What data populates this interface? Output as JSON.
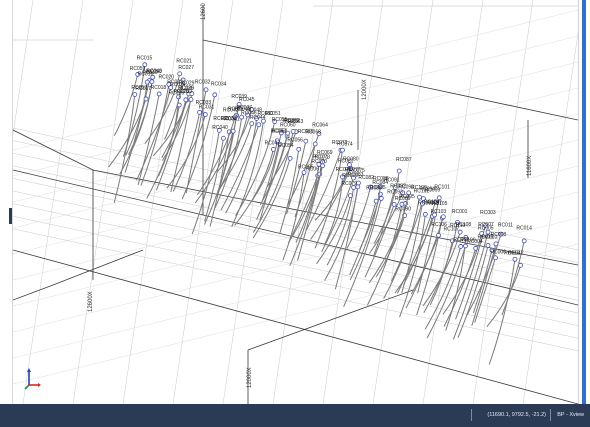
{
  "scene": {
    "axis_labels": {
      "top_north": "12600",
      "mid_north": "12000X",
      "right_elev": "11600X",
      "left_east": "12600X",
      "bottom_east": "12000X"
    },
    "hole_color": "#7a7a7a",
    "collar_color": "#3b4cc0",
    "label_color": "#1a1a1a",
    "drillholes": [
      {
        "id": "RC059"
      },
      {
        "id": "RC049"
      },
      {
        "id": "RC015"
      },
      {
        "id": "RC057"
      },
      {
        "id": "RC058"
      },
      {
        "id": "RC016"
      },
      {
        "id": "RC017"
      },
      {
        "id": "RC018"
      },
      {
        "id": "RC019"
      },
      {
        "id": "RC020"
      },
      {
        "id": "RC021"
      },
      {
        "id": "RC022"
      },
      {
        "id": "RC023"
      },
      {
        "id": "RC024"
      },
      {
        "id": "RC025"
      },
      {
        "id": "RC026"
      },
      {
        "id": "RC027"
      },
      {
        "id": "RC028"
      },
      {
        "id": "RC029"
      },
      {
        "id": "RC030"
      },
      {
        "id": "RC031"
      },
      {
        "id": "RC032"
      },
      {
        "id": "RC033"
      },
      {
        "id": "RC034"
      },
      {
        "id": "RC035"
      },
      {
        "id": "RC036"
      },
      {
        "id": "RC037"
      },
      {
        "id": "RC038"
      },
      {
        "id": "RC039"
      },
      {
        "id": "RC040"
      },
      {
        "id": "RC041"
      },
      {
        "id": "RC042"
      },
      {
        "id": "RC043"
      },
      {
        "id": "RC044"
      },
      {
        "id": "RC045"
      },
      {
        "id": "RC046"
      },
      {
        "id": "RC047"
      },
      {
        "id": "RC048"
      },
      {
        "id": "RC050"
      },
      {
        "id": "RC051"
      },
      {
        "id": "RC052"
      },
      {
        "id": "RC053"
      },
      {
        "id": "RC054"
      },
      {
        "id": "RC055"
      },
      {
        "id": "RC056"
      },
      {
        "id": "RC060"
      },
      {
        "id": "RC061"
      },
      {
        "id": "RC062"
      },
      {
        "id": "RC063"
      },
      {
        "id": "RC064"
      },
      {
        "id": "RC065"
      },
      {
        "id": "RC066"
      },
      {
        "id": "RC067"
      },
      {
        "id": "RC068"
      },
      {
        "id": "RC069"
      },
      {
        "id": "RC070"
      },
      {
        "id": "RC071"
      },
      {
        "id": "RC072"
      },
      {
        "id": "RC073"
      },
      {
        "id": "RC074"
      },
      {
        "id": "RC075"
      },
      {
        "id": "RC076"
      },
      {
        "id": "RC077"
      },
      {
        "id": "RC078"
      },
      {
        "id": "RC079"
      },
      {
        "id": "RC080"
      },
      {
        "id": "RC081"
      },
      {
        "id": "RC082"
      },
      {
        "id": "RC083"
      },
      {
        "id": "RC084"
      },
      {
        "id": "RC085"
      },
      {
        "id": "RC086"
      },
      {
        "id": "RC087"
      },
      {
        "id": "RC088"
      },
      {
        "id": "RC089"
      },
      {
        "id": "RC090"
      },
      {
        "id": "RC091"
      },
      {
        "id": "RC092"
      },
      {
        "id": "RC093"
      },
      {
        "id": "RC094"
      },
      {
        "id": "RC095"
      },
      {
        "id": "RC096"
      },
      {
        "id": "RC097"
      },
      {
        "id": "RC098"
      },
      {
        "id": "RC099"
      },
      {
        "id": "RC100"
      },
      {
        "id": "RC101"
      },
      {
        "id": "RC102"
      },
      {
        "id": "RC103"
      },
      {
        "id": "RC104"
      },
      {
        "id": "RC105"
      },
      {
        "id": "RC106"
      },
      {
        "id": "RC107"
      },
      {
        "id": "RC108"
      },
      {
        "id": "RC109"
      },
      {
        "id": "RC110"
      },
      {
        "id": "RC001"
      },
      {
        "id": "RC002"
      },
      {
        "id": "RC003"
      },
      {
        "id": "RC004"
      },
      {
        "id": "RC005"
      },
      {
        "id": "RC006"
      },
      {
        "id": "RC007"
      },
      {
        "id": "RC008"
      },
      {
        "id": "RC009"
      },
      {
        "id": "RC010"
      },
      {
        "id": "RC011"
      },
      {
        "id": "RC012"
      },
      {
        "id": "RC013"
      },
      {
        "id": "RC014"
      }
    ]
  },
  "statusbar": {
    "coordinates": "(11690.1, 9792.5, -21.2)",
    "mode": "BP - Xview"
  }
}
